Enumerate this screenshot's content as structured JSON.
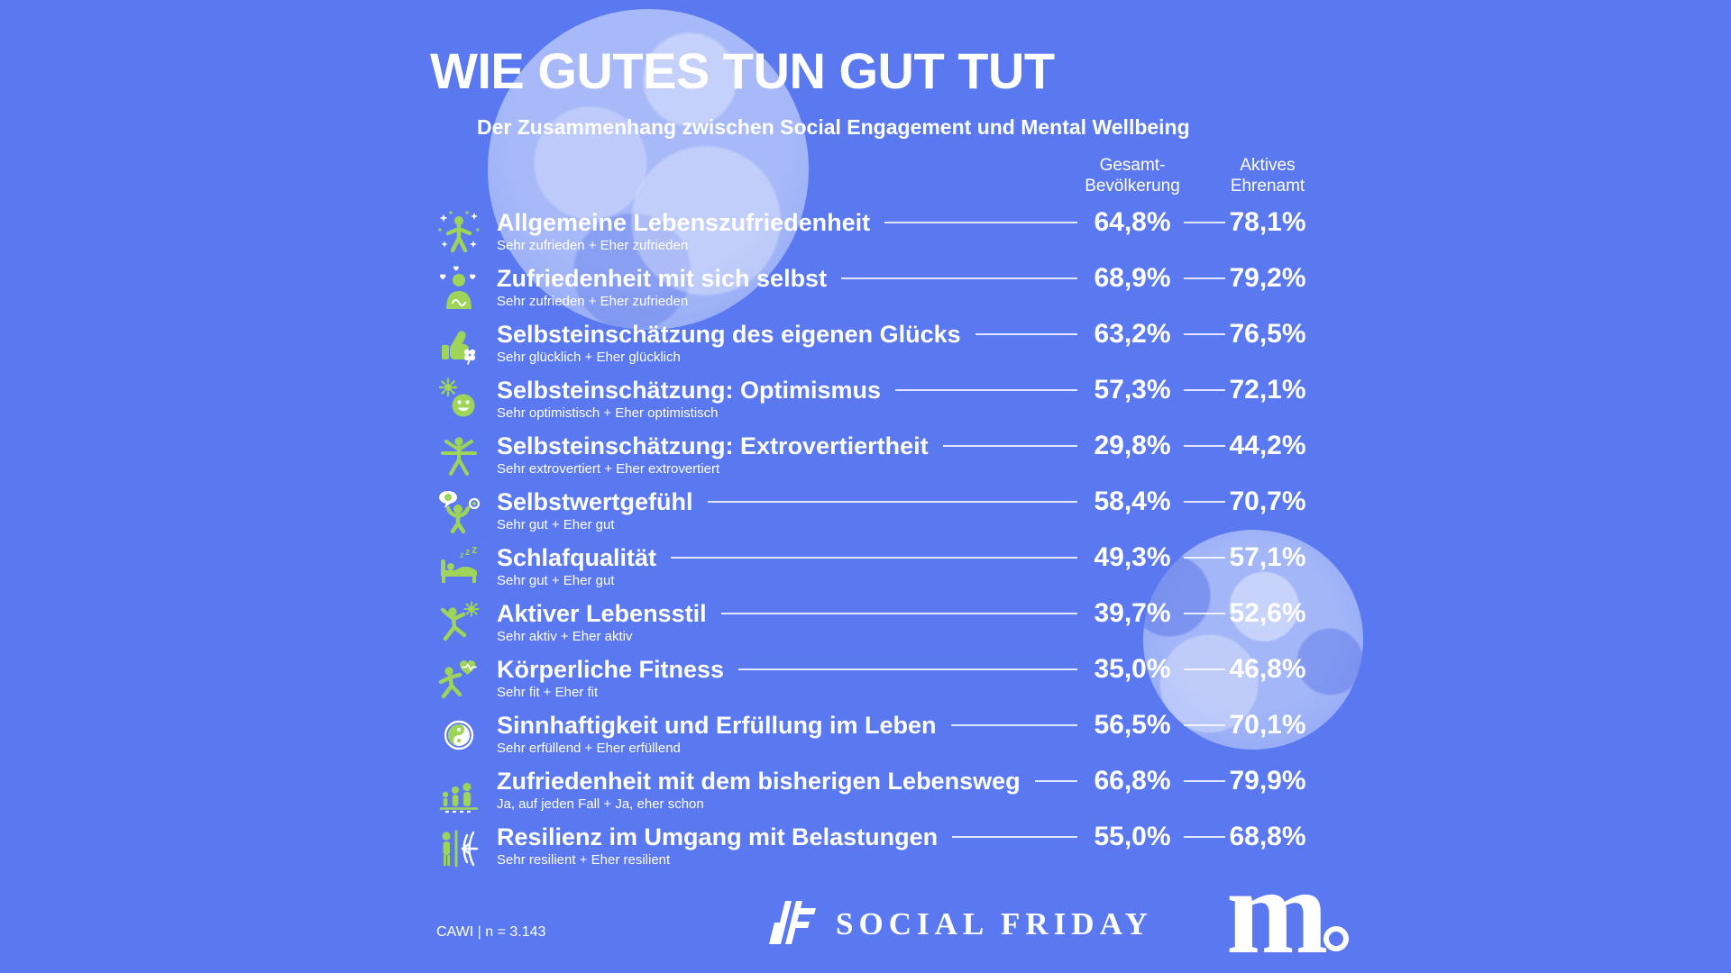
{
  "colors": {
    "background": "#5A79F0",
    "accent_green": "#9ED457",
    "text": "#FFFFFF",
    "photo_tint": "#8DA4F5",
    "line": "rgba(255,255,255,0.82)"
  },
  "header": {
    "title": "WIE GUTES TUN GUT TUT",
    "subtitle": "Der Zusammenhang zwischen Social Engagement und Mental Wellbeing"
  },
  "columns": {
    "col1": [
      "Gesamt-",
      "Bevölkerung"
    ],
    "col2": [
      "Aktives",
      "Ehrenamt"
    ]
  },
  "rows": [
    {
      "label": "Allgemeine Lebenszufriedenheit",
      "sublabel": "Sehr zufrieden + Eher zufrieden",
      "value_total": "64,8%",
      "value_volunteer": "78,1%",
      "icon": "person-sparkles"
    },
    {
      "label": "Zufriedenheit mit sich selbst",
      "sublabel": "Sehr zufrieden + Eher zufrieden",
      "value_total": "68,9%",
      "value_volunteer": "79,2%",
      "icon": "person-hearts"
    },
    {
      "label": "Selbsteinschätzung des eigenen Glücks",
      "sublabel": "Sehr glücklich + Eher glücklich",
      "value_total": "63,2%",
      "value_volunteer": "76,5%",
      "icon": "thumbs-up-clover"
    },
    {
      "label": "Selbsteinschätzung: Optimismus",
      "sublabel": "Sehr optimistisch + Eher optimistisch",
      "value_total": "57,3%",
      "value_volunteer": "72,1%",
      "icon": "sun-smiley"
    },
    {
      "label": "Selbsteinschätzung: Extrovertiertheit",
      "sublabel": "Sehr extrovertiert + Eher extrovertiert",
      "value_total": "29,8%",
      "value_volunteer": "44,2%",
      "icon": "extrovert-person"
    },
    {
      "label": "Selbstwertgefühl",
      "sublabel": "Sehr gut + Eher gut",
      "value_total": "58,4%",
      "value_volunteer": "70,7%",
      "icon": "flexing-person-speech"
    },
    {
      "label": "Schlafqualität",
      "sublabel": "Sehr gut + Eher gut",
      "value_total": "49,3%",
      "value_volunteer": "57,1%",
      "icon": "bed-zzz"
    },
    {
      "label": "Aktiver Lebensstil",
      "sublabel": "Sehr aktiv + Eher aktiv",
      "value_total": "39,7%",
      "value_volunteer": "52,6%",
      "icon": "jumping-person-sun"
    },
    {
      "label": "Körperliche Fitness",
      "sublabel": "Sehr fit + Eher fit",
      "value_total": "35,0%",
      "value_volunteer": "46,8%",
      "icon": "runner-heart-pulse"
    },
    {
      "label": "Sinnhaftigkeit und Erfüllung im Leben",
      "sublabel": "Sehr erfüllend + Eher erfüllend",
      "value_total": "56,5%",
      "value_volunteer": "70,1%",
      "icon": "yin-yang"
    },
    {
      "label": "Zufriedenheit mit dem bisherigen Lebensweg",
      "sublabel": "Ja, auf jeden Fall + Ja, eher schon",
      "value_total": "66,8%",
      "value_volunteer": "79,9%",
      "icon": "family-walking"
    },
    {
      "label": "Resilienz im Umgang mit Belastungen",
      "sublabel": "Sehr resilient + Eher resilient",
      "value_total": "55,0%",
      "value_volunteer": "68,8%",
      "icon": "person-waves-arrow"
    }
  ],
  "footer": {
    "source_note": "CAWI | n = 3.143",
    "brand_social_friday": "SOCIAL FRIDAY",
    "brand_m": "m"
  },
  "chart_data": {
    "type": "table",
    "title": "WIE GUTES TUN GUT TUT",
    "subtitle": "Der Zusammenhang zwischen Social Engagement und Mental Wellbeing",
    "value_format": "percent (German decimal comma)",
    "categories": [
      "Allgemeine Lebenszufriedenheit",
      "Zufriedenheit mit sich selbst",
      "Selbsteinschätzung des eigenen Glücks",
      "Selbsteinschätzung: Optimismus",
      "Selbsteinschätzung: Extrovertiertheit",
      "Selbstwertgefühl",
      "Schlafqualität",
      "Aktiver Lebensstil",
      "Körperliche Fitness",
      "Sinnhaftigkeit und Erfüllung im Leben",
      "Zufriedenheit mit dem bisherigen Lebensweg",
      "Resilienz im Umgang mit Belastungen"
    ],
    "series": [
      {
        "name": "Gesamt-Bevölkerung",
        "values": [
          64.8,
          68.9,
          63.2,
          57.3,
          29.8,
          58.4,
          49.3,
          39.7,
          35.0,
          56.5,
          66.8,
          55.0
        ]
      },
      {
        "name": "Aktives Ehrenamt",
        "values": [
          78.1,
          79.2,
          76.5,
          72.1,
          44.2,
          70.7,
          57.1,
          52.6,
          46.8,
          70.1,
          79.9,
          68.8
        ]
      }
    ],
    "sample_note": "CAWI | n = 3.143"
  }
}
